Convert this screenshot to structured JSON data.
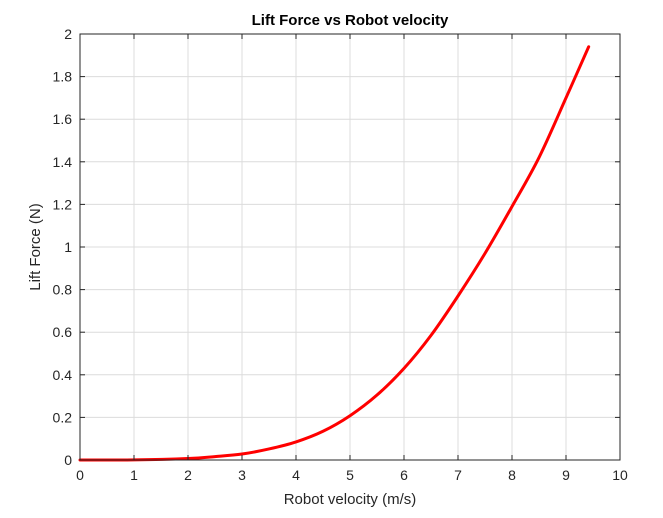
{
  "chart_data": {
    "type": "line",
    "title": "Lift Force vs Robot velocity",
    "xlabel": "Robot velocity (m/s)",
    "ylabel": "Lift Force (N)",
    "xlim": [
      0,
      10
    ],
    "ylim": [
      0,
      2
    ],
    "xticks": [
      0,
      1,
      2,
      3,
      4,
      5,
      6,
      7,
      8,
      9,
      10
    ],
    "yticks": [
      0,
      0.2,
      0.4,
      0.6,
      0.8,
      1,
      1.2,
      1.4,
      1.6,
      1.8,
      2
    ],
    "xtick_labels": [
      "0",
      "1",
      "2",
      "3",
      "4",
      "5",
      "6",
      "7",
      "8",
      "9",
      "10"
    ],
    "ytick_labels": [
      "0",
      "0.2",
      "0.4",
      "0.6",
      "0.8",
      "1",
      "1.2",
      "1.4",
      "1.6",
      "1.8",
      "2"
    ],
    "grid": true,
    "series": [
      {
        "color": "#ff0000",
        "x": [
          0,
          1,
          2,
          2.5,
          3,
          3.5,
          4,
          4.5,
          5,
          5.5,
          6,
          6.5,
          7,
          7.5,
          8,
          8.5,
          9,
          9.42
        ],
        "y": [
          0,
          0.0005,
          0.007,
          0.016,
          0.028,
          0.052,
          0.085,
          0.135,
          0.208,
          0.305,
          0.43,
          0.585,
          0.77,
          0.97,
          1.19,
          1.42,
          1.7,
          1.94
        ]
      }
    ]
  }
}
